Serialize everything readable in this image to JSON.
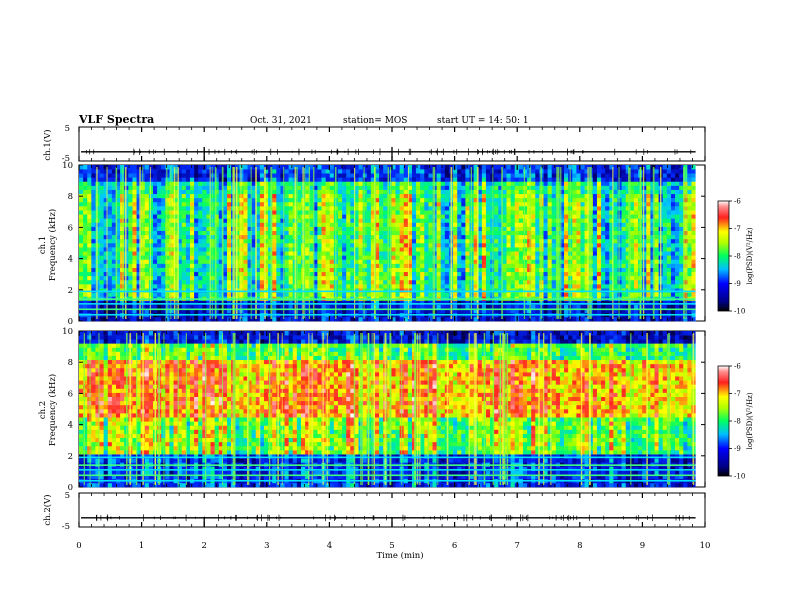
{
  "header": {
    "title": "VLF Spectra",
    "date": "Oct. 31, 2021",
    "station": "station= MOS",
    "start": "start  UT =   14: 50: 1"
  },
  "chart_data": [
    {
      "type": "line",
      "name": "ch1-waveform",
      "ylabel": "ch.1(V)",
      "ylim": [
        -5,
        5
      ],
      "yticks": [
        "5",
        "-5"
      ],
      "baseline": -2.3,
      "xlim": [
        0,
        10
      ]
    },
    {
      "type": "heatmap",
      "name": "ch1-spectrogram",
      "ylabel_line1": "ch.1",
      "ylabel_line2": "Frequency (kHz)",
      "ylim": [
        0,
        10
      ],
      "yticks": [
        "0",
        "2",
        "4",
        "6",
        "8",
        "10"
      ],
      "xlim": [
        0,
        9.85
      ],
      "colorbar": {
        "label": "log(PSD)(V²/Hz)",
        "range": [
          -10,
          -6
        ],
        "ticks": [
          "-6",
          "-7",
          "-8",
          "-9",
          "-10"
        ]
      }
    },
    {
      "type": "heatmap",
      "name": "ch2-spectrogram",
      "ylabel_line1": "ch.2",
      "ylabel_line2": "Frequency (kHz)",
      "ylim": [
        0,
        10
      ],
      "yticks": [
        "0",
        "2",
        "4",
        "6",
        "8",
        "10"
      ],
      "xlim": [
        0,
        9.85
      ],
      "colorbar": {
        "label": "log(PSD)(V²/Hz)",
        "range": [
          -10,
          -6
        ],
        "ticks": [
          "-6",
          "-7",
          "-8",
          "-9",
          "-10"
        ]
      }
    },
    {
      "type": "line",
      "name": "ch2-waveform",
      "ylabel": "ch.2(V)",
      "ylim": [
        -5,
        5
      ],
      "yticks": [
        "5",
        "-5"
      ],
      "baseline": -2.3,
      "xlim": [
        0,
        10
      ]
    }
  ],
  "x_axis": {
    "label": "Time  (min)",
    "ticks": [
      "0",
      "1",
      "2",
      "3",
      "4",
      "5",
      "6",
      "7",
      "8",
      "9",
      "10"
    ],
    "range": [
      0,
      10
    ]
  },
  "colors": {
    "background": "#000033",
    "low": "#0000aa",
    "mid": "#00ff66",
    "high": "#ff2020"
  }
}
